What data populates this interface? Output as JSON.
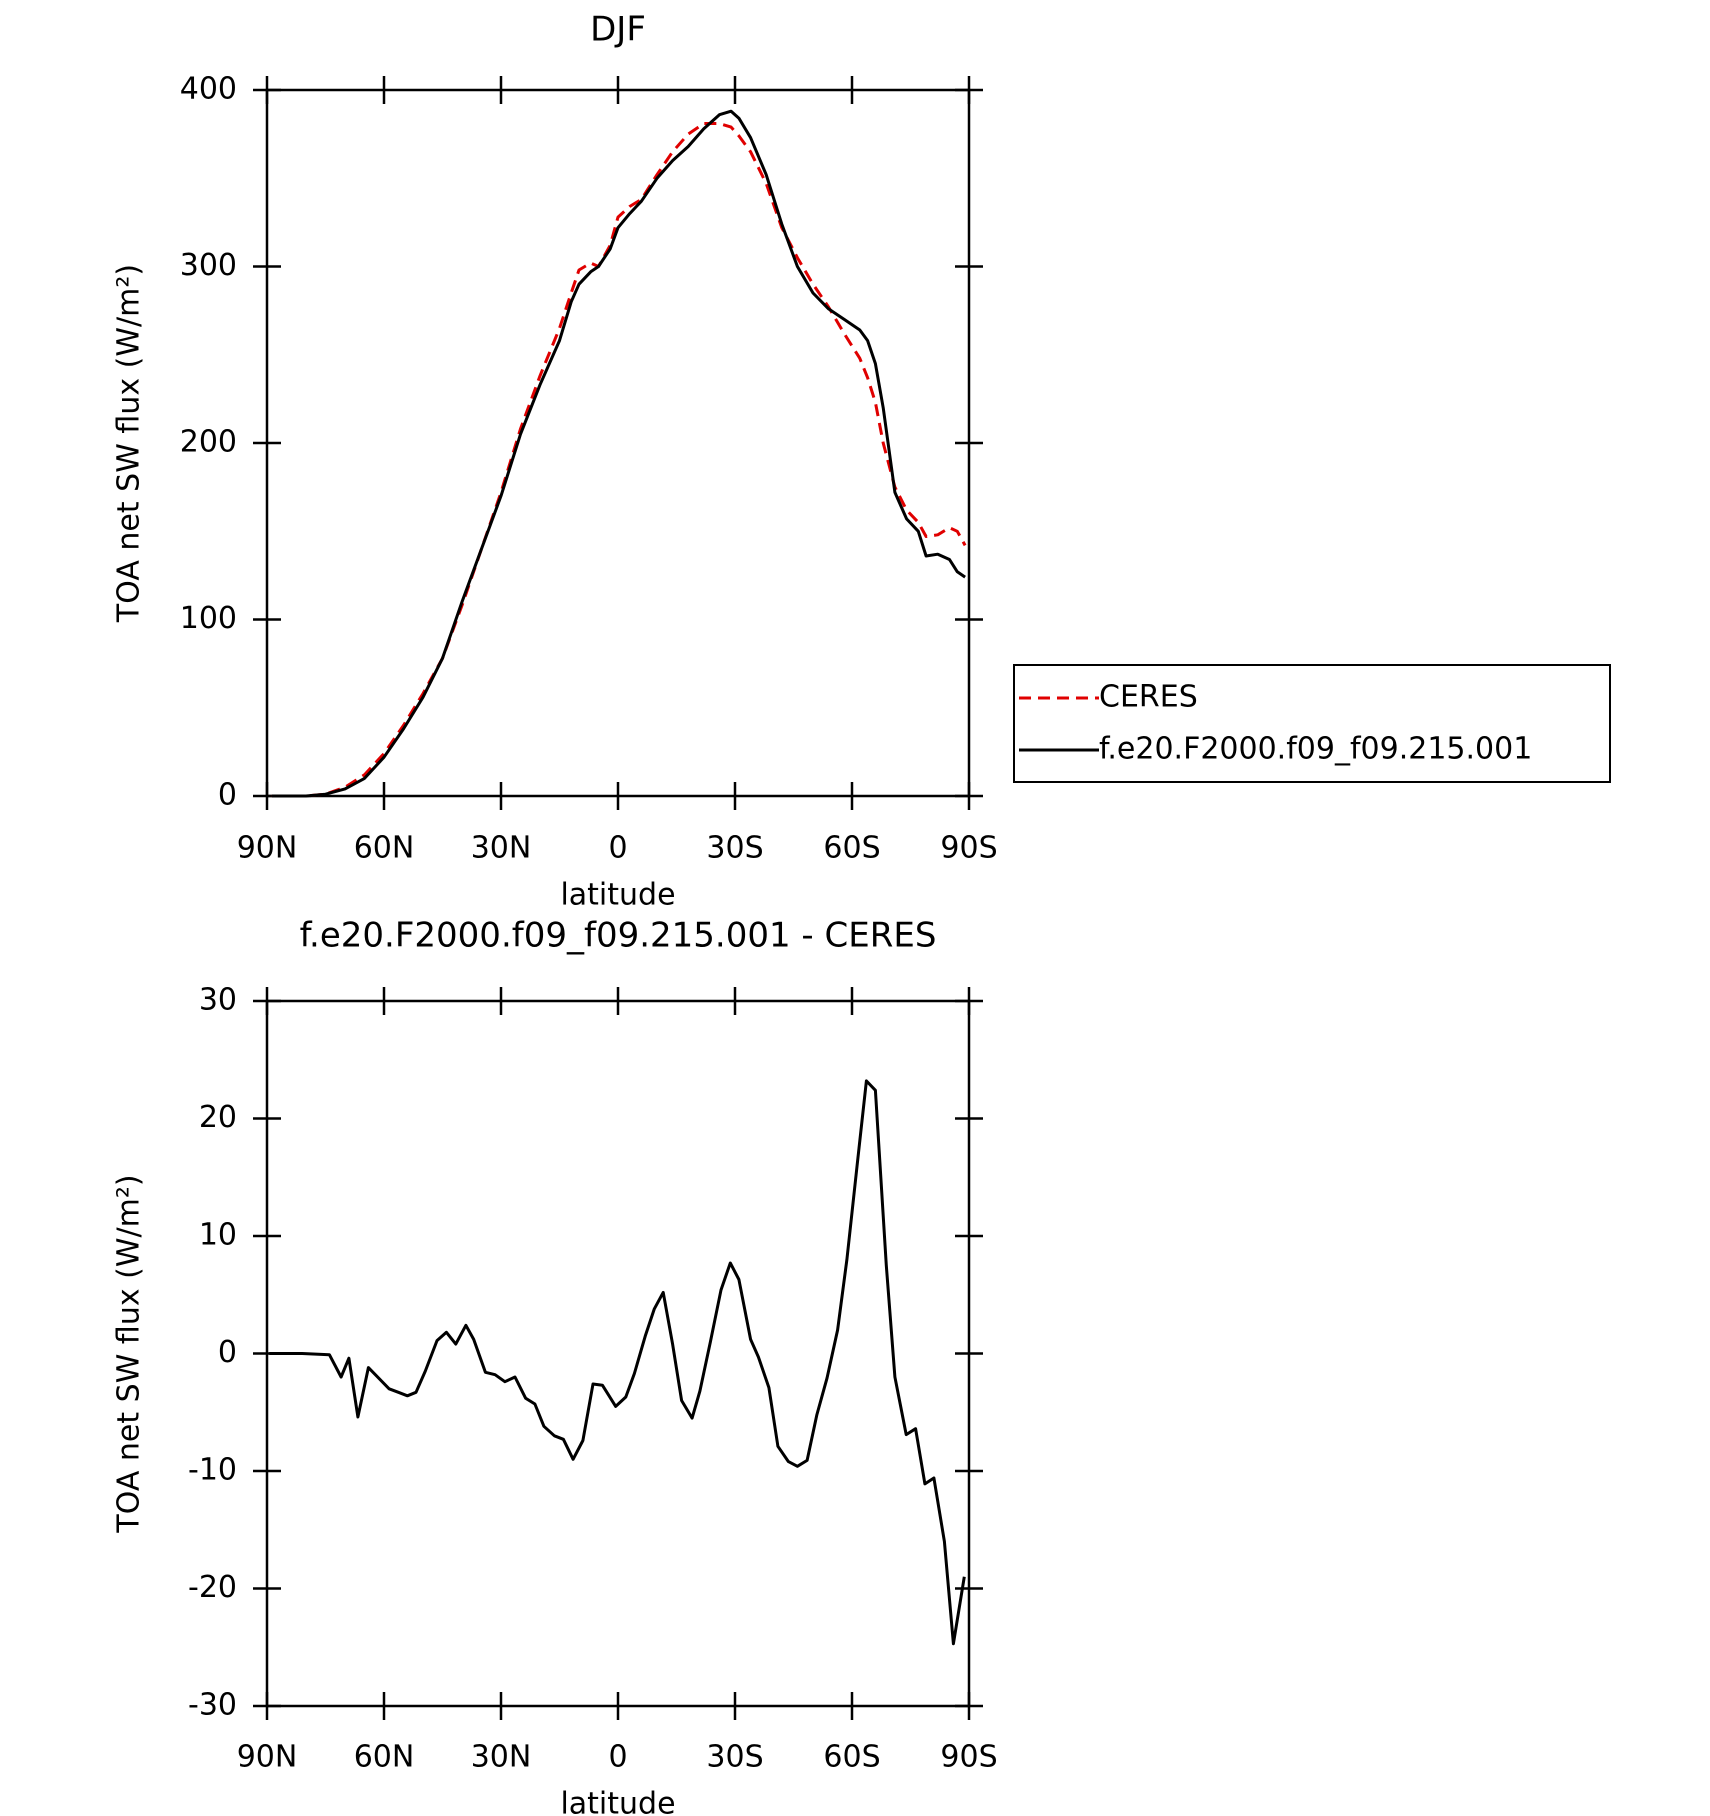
{
  "chart_data": [
    {
      "type": "line",
      "title": "DJF",
      "xlabel": "latitude",
      "ylabel": "TOA net SW flux (W/m²)",
      "x": [
        88.75,
        80,
        75,
        70,
        65,
        60,
        55,
        50,
        45,
        40,
        35,
        30,
        25,
        20,
        15,
        12,
        10,
        7,
        5,
        2,
        0,
        -3,
        -6,
        -10,
        -14,
        -18,
        -22,
        -26,
        -29,
        -31,
        -34,
        -38,
        -42,
        -46,
        -50,
        -54,
        -58,
        -62,
        -64,
        -66,
        -68,
        -71,
        -74,
        -77,
        -79,
        -82,
        -85,
        -87,
        -89
      ],
      "series": [
        {
          "name": "CERES",
          "color": "#e00000",
          "linestyle": "dashed",
          "values": [
            0,
            0,
            1,
            5,
            12,
            24,
            40,
            58,
            78,
            108,
            140,
            172,
            208,
            238,
            265,
            285,
            298,
            302,
            300,
            312,
            328,
            334,
            338,
            352,
            365,
            375,
            381,
            381,
            379,
            374,
            365,
            347,
            322,
            305,
            290,
            277,
            262,
            248,
            237,
            223,
            200,
            175,
            162,
            155,
            147,
            148,
            152,
            150,
            142
          ]
        },
        {
          "name": "f.e20.F2000.f09_f09.215.001",
          "color": "#000000",
          "linestyle": "solid",
          "values": [
            0,
            0,
            1,
            4,
            10,
            22,
            38,
            56,
            78,
            110,
            140,
            170,
            205,
            233,
            258,
            280,
            290,
            297,
            300,
            310,
            322,
            330,
            337,
            350,
            360,
            368,
            378,
            386,
            388,
            384,
            373,
            352,
            324,
            300,
            285,
            276,
            270,
            264,
            258,
            245,
            220,
            172,
            157,
            150,
            136,
            137,
            134,
            127,
            124
          ]
        }
      ],
      "xlim": [
        90,
        -90
      ],
      "xticks": [
        {
          "value": 90,
          "label": "90N"
        },
        {
          "value": 60,
          "label": "60N"
        },
        {
          "value": 30,
          "label": "30N"
        },
        0,
        {
          "value": -30,
          "label": "30S"
        },
        {
          "value": -60,
          "label": "60S"
        },
        {
          "value": -90,
          "label": "90S"
        }
      ],
      "ylim": [
        0,
        400
      ],
      "yticks": [
        0,
        100,
        200,
        300,
        400
      ],
      "legend": "outside-right"
    },
    {
      "type": "line",
      "title": "f.e20.F2000.f09_f09.215.001 - CERES",
      "xlabel": "latitude",
      "ylabel": "TOA net SW flux (W/m²)",
      "x": [
        89.4,
        81,
        74,
        71,
        69,
        66.7,
        64,
        58.7,
        56.3,
        54,
        51.8,
        49.4,
        46.4,
        44,
        41.6,
        39,
        37,
        34,
        31.5,
        29,
        26.4,
        23.7,
        21.3,
        19,
        16.3,
        14,
        11.5,
        9,
        6.4,
        4,
        0.6,
        -2,
        -4.2,
        -7,
        -9.3,
        -11.6,
        -14,
        -16.3,
        -19,
        -21,
        -23.7,
        -26.4,
        -28.8,
        -31,
        -34,
        -36,
        -38.7,
        -41,
        -43.7,
        -46,
        -48.5,
        -51,
        -53.6,
        -56.3,
        -58.7,
        -61.3,
        -63.7,
        -66,
        -68.8,
        -71,
        -73.9,
        -76.3,
        -78.7,
        -81,
        -83.7,
        -86,
        -88.8
      ],
      "series": [
        {
          "name": "f.e20.F2000.f09_f09.215.001 - CERES",
          "color": "#000000",
          "linestyle": "solid",
          "values": [
            0,
            0,
            -0.1,
            -2,
            -0.4,
            -5.4,
            -1.2,
            -3,
            -3.3,
            -3.6,
            -3.3,
            -1.5,
            1.1,
            1.8,
            0.8,
            2.4,
            1.2,
            -1.6,
            -1.8,
            -2.4,
            -2,
            -3.8,
            -4.3,
            -6.2,
            -7,
            -7.3,
            -9,
            -7.4,
            -2.6,
            -2.7,
            -4.5,
            -3.7,
            -1.7,
            1.5,
            3.8,
            5.2,
            0.8,
            -4,
            -5.5,
            -3.2,
            1,
            5.4,
            7.7,
            6.3,
            1.2,
            -0.3,
            -2.9,
            -7.9,
            -9.2,
            -9.6,
            -9.1,
            -5.2,
            -2.1,
            2,
            8,
            16,
            23.2,
            22.4,
            7.5,
            -2,
            -6.9,
            -6.4,
            -11.1,
            -10.6,
            -16,
            -24.7,
            -19
          ]
        }
      ],
      "xlim": [
        90,
        -90
      ],
      "xticks": [
        {
          "value": 90,
          "label": "90N"
        },
        {
          "value": 60,
          "label": "60N"
        },
        {
          "value": 30,
          "label": "30N"
        },
        0,
        {
          "value": -30,
          "label": "30S"
        },
        {
          "value": -60,
          "label": "60S"
        },
        {
          "value": -90,
          "label": "90S"
        }
      ],
      "ylim": [
        -30,
        30
      ],
      "yticks": [
        -30,
        -20,
        -10,
        0,
        10,
        20,
        30
      ]
    }
  ]
}
